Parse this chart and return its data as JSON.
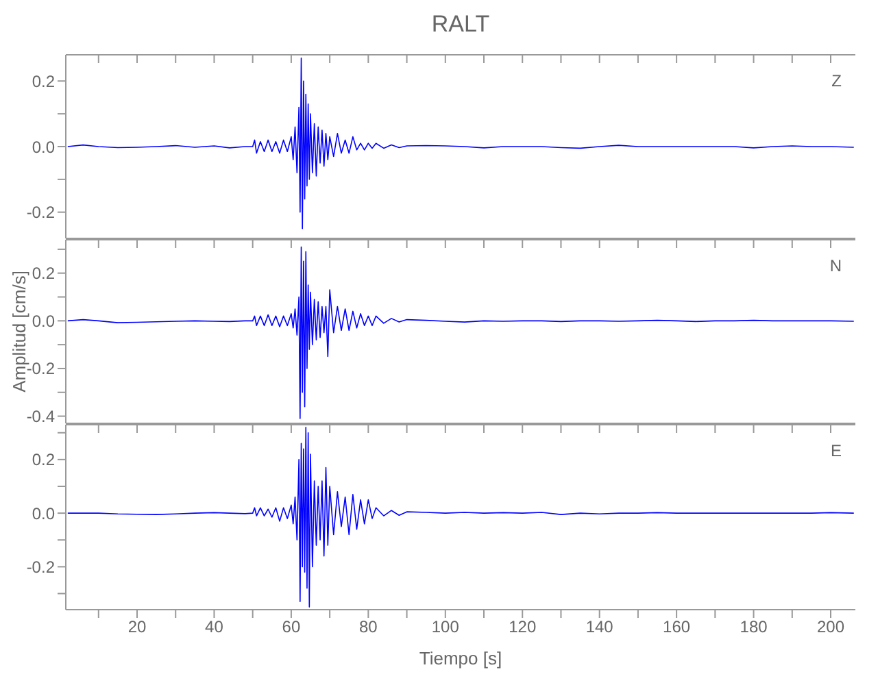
{
  "chart_data": [
    {
      "type": "line",
      "title": "RALT",
      "annotations": [
        "Z"
      ],
      "color": "#0000ff",
      "marker": "none",
      "tick_labels": "y",
      "x": [
        2,
        6,
        10,
        15,
        20,
        25,
        30,
        35,
        40,
        44,
        48,
        50,
        50.5,
        51,
        52,
        53,
        54,
        55,
        56,
        57,
        58,
        59,
        60,
        60.5,
        61,
        61.5,
        62,
        62.3,
        62.6,
        62.9,
        63.2,
        63.5,
        63.8,
        64.1,
        64.4,
        64.7,
        65,
        65.5,
        66,
        66.5,
        67,
        67.5,
        68,
        68.5,
        69,
        69.5,
        70,
        71,
        72,
        73,
        74,
        75,
        76,
        77,
        78,
        79,
        80,
        81,
        82,
        84,
        86,
        88,
        90,
        95,
        100,
        105,
        110,
        115,
        120,
        125,
        130,
        135,
        140,
        145,
        150,
        155,
        160,
        165,
        170,
        175,
        180,
        185,
        190,
        195,
        200,
        206
      ],
      "values": [
        0,
        0.005,
        0,
        -0.003,
        -0.002,
        0,
        0.003,
        -0.002,
        0.002,
        -0.004,
        0,
        0,
        0.02,
        -0.02,
        0.015,
        -0.015,
        0.02,
        -0.015,
        0.015,
        -0.02,
        0.02,
        -0.015,
        0.03,
        -0.04,
        0.06,
        -0.08,
        0.12,
        -0.2,
        0.27,
        -0.25,
        0.2,
        -0.16,
        0.16,
        -0.12,
        0.13,
        -0.1,
        0.1,
        -0.08,
        0.07,
        -0.09,
        0.06,
        -0.05,
        0.05,
        -0.06,
        0.04,
        -0.04,
        0.03,
        -0.03,
        0.04,
        -0.02,
        0.02,
        -0.02,
        0.03,
        -0.01,
        0.01,
        -0.01,
        0.01,
        -0.005,
        0.01,
        -0.005,
        0.005,
        -0.003,
        0.002,
        0.003,
        0.002,
        0,
        -0.004,
        0,
        0,
        0,
        -0.003,
        -0.005,
        0,
        0.004,
        0,
        0,
        0,
        0,
        0,
        0,
        -0.004,
        0,
        0.002,
        0,
        0,
        -0.002
      ],
      "xlim": [
        1.5,
        206.4
      ],
      "xticks": [
        {
          "value": 10,
          "label": null
        },
        {
          "value": 20,
          "label": null
        },
        {
          "value": 30,
          "label": null
        },
        {
          "value": 40,
          "label": null
        },
        {
          "value": 50,
          "label": null
        },
        {
          "value": 60,
          "label": null
        },
        {
          "value": 70,
          "label": null
        },
        {
          "value": 80,
          "label": null
        },
        {
          "value": 90,
          "label": null
        },
        {
          "value": 100,
          "label": null
        },
        {
          "value": 110,
          "label": null
        },
        {
          "value": 120,
          "label": null
        },
        {
          "value": 130,
          "label": null
        },
        {
          "value": 140,
          "label": null
        },
        {
          "value": 150,
          "label": null
        },
        {
          "value": 160,
          "label": null
        },
        {
          "value": 170,
          "label": null
        },
        {
          "value": 180,
          "label": null
        },
        {
          "value": 190,
          "label": null
        },
        {
          "value": 200,
          "label": null
        }
      ],
      "ylim": [
        -0.28,
        0.28
      ],
      "yticks": [
        -0.2,
        {
          "value": -0.1,
          "label": null
        },
        {
          "value": 0,
          "label": "0.0"
        },
        {
          "value": 0.1,
          "label": null
        },
        0.2
      ]
    },
    {
      "type": "line",
      "ylabel": "Amplitud  [cm/s]",
      "annotations": [
        "N"
      ],
      "color": "#0000ff",
      "marker": "none",
      "tick_labels": "y",
      "x": [
        2,
        6,
        10,
        15,
        20,
        25,
        30,
        35,
        40,
        44,
        48,
        50,
        50.5,
        51,
        52,
        53,
        54,
        55,
        56,
        57,
        58,
        59,
        60,
        60.5,
        61,
        61.5,
        62,
        62.3,
        62.6,
        62.9,
        63.2,
        63.5,
        63.8,
        64.1,
        64.4,
        64.7,
        65,
        65.5,
        66,
        66.5,
        67,
        67.5,
        68,
        68.5,
        69,
        69.5,
        70,
        71,
        72,
        73,
        74,
        75,
        76,
        77,
        78,
        79,
        80,
        81,
        82,
        84,
        86,
        88,
        90,
        95,
        100,
        105,
        110,
        115,
        120,
        125,
        130,
        135,
        140,
        145,
        150,
        155,
        160,
        165,
        170,
        175,
        180,
        185,
        190,
        195,
        200,
        206
      ],
      "values": [
        0,
        0.005,
        0,
        -0.008,
        -0.006,
        -0.004,
        -0.002,
        0,
        -0.002,
        -0.003,
        0,
        0,
        0.02,
        -0.02,
        0.02,
        -0.02,
        0.025,
        -0.02,
        0.02,
        -0.025,
        0.02,
        -0.02,
        0.03,
        -0.03,
        0.05,
        -0.06,
        0.1,
        -0.41,
        0.31,
        -0.3,
        0.25,
        -0.36,
        0.29,
        -0.2,
        0.15,
        -0.12,
        0.12,
        -0.1,
        0.09,
        -0.08,
        0.08,
        -0.07,
        0.06,
        -0.05,
        0.06,
        -0.15,
        0.13,
        -0.05,
        0.06,
        -0.04,
        0.05,
        -0.04,
        0.04,
        -0.03,
        0.03,
        -0.02,
        0.02,
        -0.02,
        0.02,
        -0.01,
        0.01,
        -0.005,
        0.005,
        0.002,
        -0.002,
        -0.005,
        0,
        -0.002,
        0,
        0,
        -0.003,
        0,
        0,
        -0.002,
        0,
        0.002,
        0,
        -0.003,
        0,
        0,
        0.002,
        0,
        0,
        0,
        0,
        -0.002
      ],
      "xlim": [
        1.5,
        206.4
      ],
      "xticks": [
        {
          "value": 10,
          "label": null
        },
        {
          "value": 20,
          "label": null
        },
        {
          "value": 30,
          "label": null
        },
        {
          "value": 40,
          "label": null
        },
        {
          "value": 50,
          "label": null
        },
        {
          "value": 60,
          "label": null
        },
        {
          "value": 70,
          "label": null
        },
        {
          "value": 80,
          "label": null
        },
        {
          "value": 90,
          "label": null
        },
        {
          "value": 100,
          "label": null
        },
        {
          "value": 110,
          "label": null
        },
        {
          "value": 120,
          "label": null
        },
        {
          "value": 130,
          "label": null
        },
        {
          "value": 140,
          "label": null
        },
        {
          "value": 150,
          "label": null
        },
        {
          "value": 160,
          "label": null
        },
        {
          "value": 170,
          "label": null
        },
        {
          "value": 180,
          "label": null
        },
        {
          "value": 190,
          "label": null
        },
        {
          "value": 200,
          "label": null
        }
      ],
      "ylim": [
        -0.43,
        0.34
      ],
      "yticks": [
        -0.4,
        {
          "value": -0.3,
          "label": null
        },
        -0.2,
        {
          "value": -0.1,
          "label": null
        },
        {
          "value": 0,
          "label": "0.0"
        },
        {
          "value": 0.1,
          "label": null
        },
        0.2,
        {
          "value": 0.3,
          "label": null
        }
      ]
    },
    {
      "type": "line",
      "xlabel": "Tiempo  [s]",
      "annotations": [
        "E"
      ],
      "color": "#0000ff",
      "marker": "none",
      "x": [
        2,
        6,
        10,
        15,
        20,
        25,
        30,
        35,
        40,
        44,
        48,
        50,
        50.5,
        51,
        52,
        53,
        54,
        55,
        56,
        57,
        58,
        59,
        60,
        60.5,
        61,
        61.5,
        62,
        62.3,
        62.6,
        62.9,
        63.2,
        63.5,
        63.8,
        64.1,
        64.4,
        64.7,
        65,
        65.5,
        66,
        66.5,
        67,
        67.5,
        68,
        68.5,
        69,
        69.5,
        70,
        71,
        72,
        73,
        74,
        75,
        76,
        77,
        78,
        79,
        80,
        81,
        82,
        84,
        86,
        88,
        90,
        95,
        100,
        105,
        110,
        115,
        120,
        125,
        130,
        135,
        140,
        145,
        150,
        155,
        160,
        165,
        170,
        175,
        180,
        185,
        190,
        195,
        200,
        206
      ],
      "values": [
        0,
        0,
        0,
        -0.003,
        -0.004,
        -0.005,
        -0.003,
        0,
        0.002,
        0,
        -0.002,
        0,
        0.02,
        -0.01,
        0.02,
        -0.01,
        0.015,
        -0.015,
        0.02,
        -0.03,
        0.02,
        -0.02,
        0.03,
        -0.04,
        0.06,
        -0.1,
        0.2,
        -0.33,
        0.26,
        -0.2,
        0.24,
        -0.22,
        0.32,
        -0.28,
        0.3,
        -0.35,
        0.22,
        -0.2,
        0.12,
        -0.12,
        0.1,
        -0.1,
        0.12,
        -0.16,
        0.17,
        -0.12,
        0.1,
        -0.08,
        0.08,
        -0.05,
        0.06,
        -0.08,
        0.07,
        -0.06,
        0.05,
        -0.04,
        0.05,
        -0.02,
        0.02,
        -0.01,
        0.01,
        -0.008,
        0.005,
        0.003,
        0,
        0.003,
        0,
        0.002,
        0,
        0.003,
        -0.005,
        0,
        -0.003,
        0,
        0,
        0.002,
        0,
        0,
        0,
        0,
        0,
        0,
        0,
        0,
        0.002,
        0
      ],
      "xlim": [
        1.5,
        206.4
      ],
      "xticks": [
        {
          "value": 10,
          "label": null
        },
        20,
        {
          "value": 30,
          "label": null
        },
        40,
        {
          "value": 50,
          "label": null
        },
        60,
        {
          "value": 70,
          "label": null
        },
        80,
        {
          "value": 90,
          "label": null
        },
        100,
        {
          "value": 110,
          "label": null
        },
        120,
        {
          "value": 130,
          "label": null
        },
        140,
        {
          "value": 150,
          "label": null
        },
        160,
        {
          "value": 170,
          "label": null
        },
        180,
        {
          "value": 190,
          "label": null
        },
        200
      ],
      "ylim": [
        -0.36,
        0.33
      ],
      "yticks": [
        {
          "value": -0.3,
          "label": null
        },
        -0.2,
        {
          "value": -0.1,
          "label": null
        },
        {
          "value": 0,
          "label": "0.0"
        },
        {
          "value": 0.1,
          "label": null
        },
        0.2,
        {
          "value": 0.3,
          "label": null
        }
      ]
    }
  ]
}
